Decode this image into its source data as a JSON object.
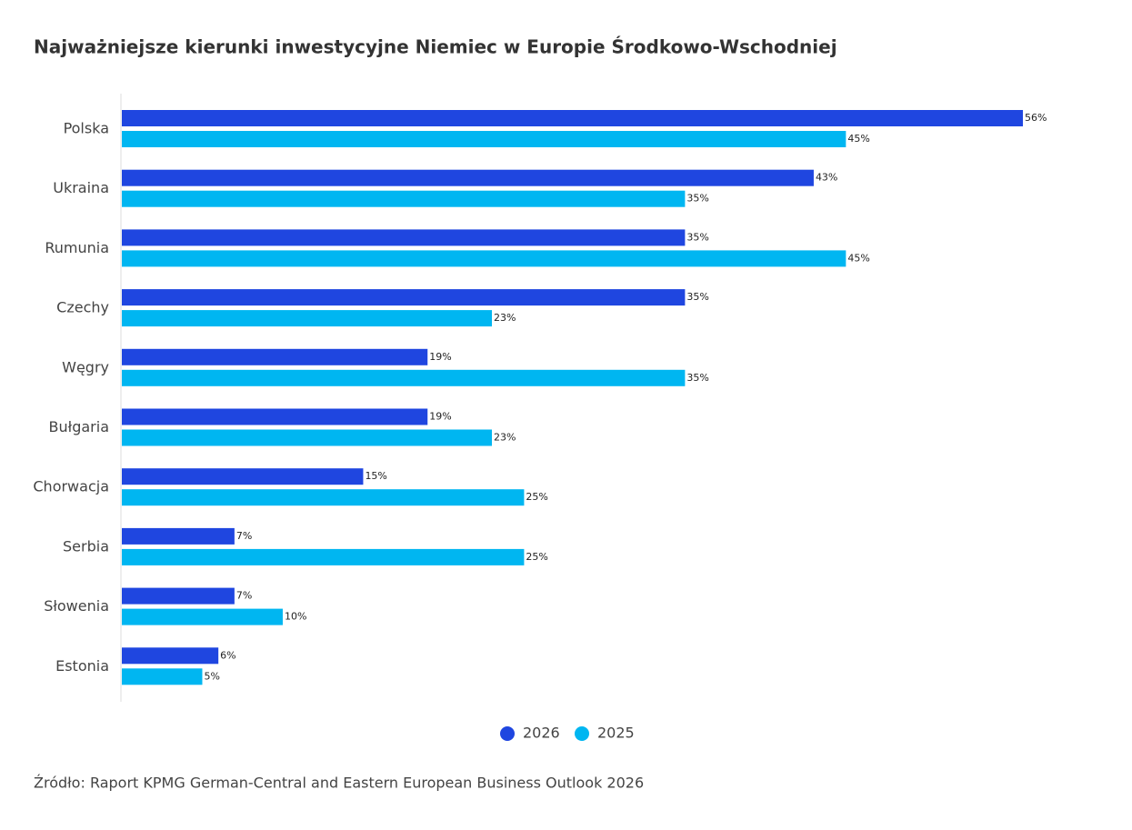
{
  "chart_data": {
    "type": "bar",
    "orientation": "horizontal",
    "title": "Najważniejsze kierunki inwestycyjne Niemiec w Europie Środkowo-Wschodniej",
    "categories": [
      "Polska",
      "Ukraina",
      "Rumunia",
      "Czechy",
      "Węgry",
      "Bułgaria",
      "Chorwacja",
      "Serbia",
      "Słowenia",
      "Estonia"
    ],
    "series": [
      {
        "name": "2026",
        "color": "#1f46e0",
        "values": [
          56,
          43,
          35,
          35,
          19,
          19,
          15,
          7,
          7,
          6
        ],
        "value_labels": [
          "56%",
          "43%",
          "35%",
          "35%",
          "19%",
          "19%",
          "15%",
          "7%",
          "7%",
          "6%"
        ]
      },
      {
        "name": "2025",
        "color": "#00b6f1",
        "values": [
          45,
          35,
          45,
          23,
          35,
          23,
          25,
          25,
          10,
          5
        ],
        "value_labels": [
          "45%",
          "35%",
          "45%",
          "23%",
          "35%",
          "23%",
          "25%",
          "25%",
          "10%",
          "5%"
        ]
      }
    ],
    "source": "Źródło: Raport KPMG German-Central and Eastern European Business Outlook 2026"
  }
}
